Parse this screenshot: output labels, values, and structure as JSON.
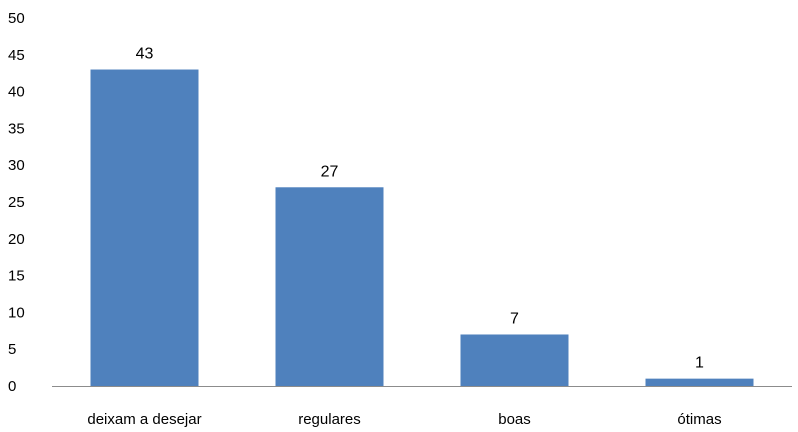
{
  "chart_data": {
    "type": "bar",
    "title": "",
    "xlabel": "",
    "ylabel": "",
    "categories": [
      "deixam a desejar",
      "regulares",
      "boas",
      "ótimas"
    ],
    "values": [
      43,
      27,
      7,
      1
    ],
    "ylim": [
      0,
      50
    ],
    "yticks": [
      "0",
      "5",
      "10",
      "15",
      "20",
      "25",
      "30",
      "35",
      "40",
      "45",
      "50"
    ],
    "data_labels": [
      "43",
      "27",
      "7",
      "1"
    ],
    "grid": false,
    "legend": "none",
    "colors": {
      "bar": "#4f81bd"
    }
  }
}
